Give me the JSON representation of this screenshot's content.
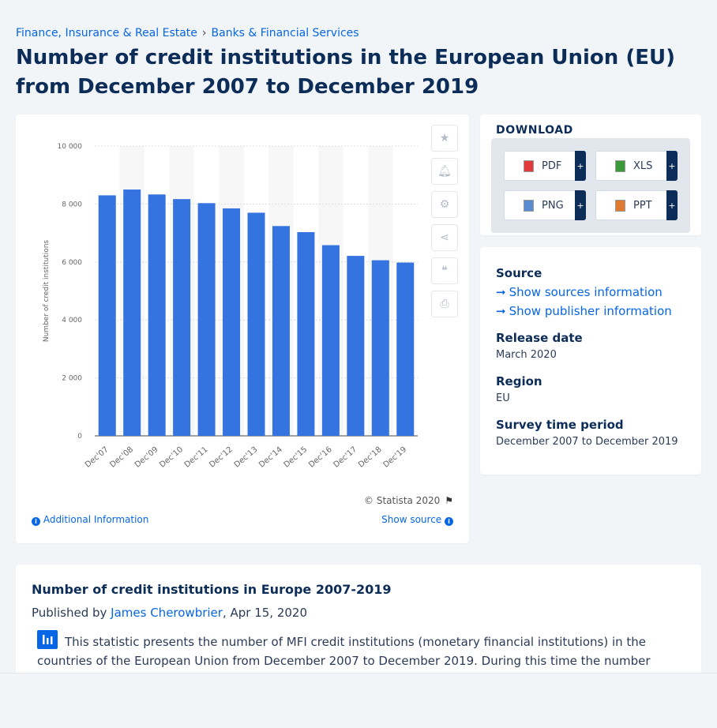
{
  "breadcrumb": {
    "item1": "Finance, Insurance & Real Estate",
    "separator": "›",
    "item2": "Banks & Financial Services"
  },
  "page_title": "Number of credit institutions in the European Union (EU) from December 2007 to December 2019",
  "toolbar": {
    "icons": [
      "star-icon",
      "bell-icon",
      "gear-icon",
      "share-icon",
      "quote-icon",
      "print-icon"
    ]
  },
  "chart_footer": {
    "copyright": "© Statista 2020",
    "additional_info": "Additional Information",
    "show_source": "Show source"
  },
  "chart_data": {
    "type": "bar",
    "categories": [
      "Dec'07",
      "Dec'08",
      "Dec'09",
      "Dec'10",
      "Dec'11",
      "Dec'12",
      "Dec'13",
      "Dec'14",
      "Dec'15",
      "Dec'16",
      "Dec'17",
      "Dec'18",
      "Dec'19"
    ],
    "values": [
      8300,
      8500,
      8330,
      8170,
      8030,
      7850,
      7700,
      7240,
      7030,
      6580,
      6210,
      6060,
      5980
    ],
    "title": "",
    "xlabel": "",
    "ylabel": "Number of credit institutions",
    "ylim": [
      0,
      10000
    ],
    "yticks": [
      0,
      2000,
      4000,
      6000,
      8000,
      10000
    ],
    "ytick_labels": [
      "0",
      "2 000",
      "4 000",
      "6 000",
      "8 000",
      "10 000"
    ],
    "bar_color": "#3473e0",
    "grid": true
  },
  "download": {
    "title": "DOWNLOAD",
    "buttons": [
      {
        "label": "PDF",
        "plus": "+",
        "color": "#e03a3a"
      },
      {
        "label": "XLS",
        "plus": "+",
        "color": "#3a9a3a"
      },
      {
        "label": "PNG",
        "plus": "+",
        "color": "#5a8ad0"
      },
      {
        "label": "PPT",
        "plus": "+",
        "color": "#e07a30"
      }
    ]
  },
  "meta": {
    "source_heading": "Source",
    "show_sources": "Show sources information",
    "show_publisher": "Show publisher information",
    "release_heading": "Release date",
    "release_value": "March 2020",
    "region_heading": "Region",
    "region_value": "EU",
    "survey_heading": "Survey time period",
    "survey_value": "December 2007 to December 2019"
  },
  "description": {
    "title": "Number of credit institutions in Europe 2007-2019",
    "published_by": "Published by",
    "author": "James Cherowbrier",
    "date": ", Apr 15, 2020",
    "text": "This statistic presents the number of MFI credit institutions (monetary financial institutions) in the countries of the European Union from December 2007 to December 2019. During this time the number of"
  }
}
